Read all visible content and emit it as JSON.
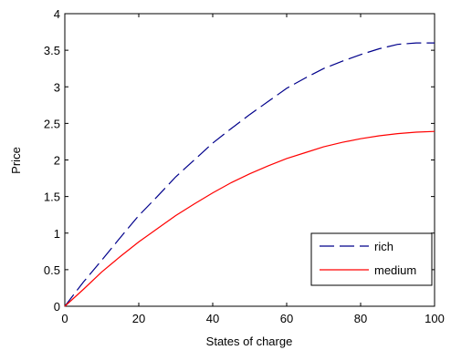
{
  "chart_data": {
    "type": "line",
    "xlabel": "States of charge",
    "ylabel": "Price",
    "xlim": [
      0,
      100
    ],
    "ylim": [
      0,
      4
    ],
    "xticks": [
      0,
      20,
      40,
      60,
      80,
      100
    ],
    "yticks": [
      0,
      0.5,
      1,
      1.5,
      2,
      2.5,
      3,
      3.5,
      4
    ],
    "xtick_labels": [
      "0",
      "20",
      "40",
      "60",
      "80",
      "100"
    ],
    "ytick_labels": [
      "0",
      "0.5",
      "1",
      "1.5",
      "2",
      "2.5",
      "3",
      "3.5",
      "4"
    ],
    "grid": false,
    "legend_position": "bottom-right",
    "series": [
      {
        "name": "rich",
        "color": "#00008b",
        "style": "dashed",
        "x": [
          0,
          5,
          10,
          15,
          20,
          25,
          30,
          35,
          40,
          45,
          50,
          55,
          60,
          65,
          70,
          75,
          80,
          85,
          90,
          95,
          100
        ],
        "y": [
          0,
          0.33,
          0.63,
          0.94,
          1.24,
          1.5,
          1.77,
          2.0,
          2.23,
          2.43,
          2.62,
          2.8,
          2.98,
          3.12,
          3.25,
          3.35,
          3.44,
          3.52,
          3.58,
          3.6,
          3.6
        ]
      },
      {
        "name": "medium",
        "color": "#ff0000",
        "style": "solid",
        "x": [
          0,
          5,
          10,
          15,
          20,
          25,
          30,
          35,
          40,
          45,
          50,
          55,
          60,
          65,
          70,
          75,
          80,
          85,
          90,
          95,
          100
        ],
        "y": [
          0,
          0.23,
          0.47,
          0.68,
          0.88,
          1.06,
          1.24,
          1.4,
          1.55,
          1.69,
          1.81,
          1.92,
          2.02,
          2.1,
          2.18,
          2.24,
          2.29,
          2.33,
          2.36,
          2.38,
          2.39
        ]
      }
    ]
  }
}
